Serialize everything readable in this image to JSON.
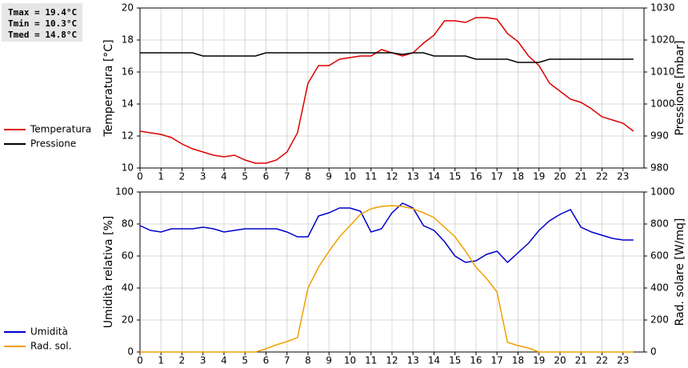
{
  "stats": [
    "Tmax = 19.4°C",
    "Tmin = 10.3°C",
    "Tmed = 14.8°C"
  ],
  "chart_data": [
    {
      "type": "line",
      "ylabel": "Temperatura [°C]",
      "y2label": "Pressione [mbar]",
      "x": [
        0,
        0.5,
        1,
        1.5,
        2,
        2.5,
        3,
        3.5,
        4,
        4.5,
        5,
        5.5,
        6,
        6.5,
        7,
        7.5,
        8,
        8.5,
        9,
        9.5,
        10,
        10.5,
        11,
        11.5,
        12,
        12.5,
        13,
        13.5,
        14,
        14.5,
        15,
        15.5,
        16,
        16.5,
        17,
        17.5,
        18,
        18.5,
        19,
        19.5,
        20,
        20.5,
        21,
        21.5,
        22,
        22.5,
        23,
        23.5
      ],
      "xlim": [
        0,
        24
      ],
      "xticks": [
        0,
        1,
        2,
        3,
        4,
        5,
        6,
        7,
        8,
        9,
        10,
        11,
        12,
        13,
        14,
        15,
        16,
        17,
        18,
        19,
        20,
        21,
        22,
        23
      ],
      "ylim": [
        10,
        20
      ],
      "yticks": [
        10,
        12,
        14,
        16,
        18,
        20
      ],
      "y2lim": [
        980,
        1030
      ],
      "y2ticks": [
        980,
        990,
        1000,
        1010,
        1020,
        1030
      ],
      "grid": true,
      "series": [
        {
          "name": "Temperatura",
          "color": "#dd0000",
          "values": [
            12.3,
            12.2,
            12.1,
            11.9,
            11.5,
            11.2,
            11.0,
            10.8,
            10.7,
            10.8,
            10.5,
            10.3,
            10.3,
            10.5,
            11.0,
            12.2,
            15.3,
            16.4,
            16.4,
            16.8,
            16.9,
            17.0,
            17.0,
            17.4,
            17.2,
            17.0,
            17.2,
            17.8,
            18.3,
            19.2,
            19.2,
            19.1,
            19.4,
            19.4,
            19.3,
            18.4,
            17.9,
            17.0,
            16.4,
            15.3,
            14.8,
            14.3,
            14.1,
            13.7,
            13.2,
            13.0,
            12.8,
            12.3
          ]
        },
        {
          "name": "Pressione",
          "color": "#000000",
          "axis": "y2",
          "values": [
            1016,
            1016,
            1016,
            1016,
            1016,
            1016,
            1015,
            1015,
            1015,
            1015,
            1015,
            1015,
            1016,
            1016,
            1016,
            1016,
            1016,
            1016,
            1016,
            1016,
            1016,
            1016,
            1016,
            1016,
            1016,
            1015.5,
            1016,
            1016,
            1015,
            1015,
            1015,
            1015,
            1014,
            1014,
            1014,
            1014,
            1013,
            1013,
            1013,
            1014,
            1014,
            1014,
            1014,
            1014,
            1014,
            1014,
            1014,
            1014
          ]
        }
      ]
    },
    {
      "type": "line",
      "ylabel": "Umidità relativa [%]",
      "y2label": "Rad. solare [W/mq]",
      "x": [
        0,
        0.5,
        1,
        1.5,
        2,
        2.5,
        3,
        3.5,
        4,
        4.5,
        5,
        5.5,
        6,
        6.5,
        7,
        7.5,
        8,
        8.5,
        9,
        9.5,
        10,
        10.5,
        11,
        11.5,
        12,
        12.5,
        13,
        13.5,
        14,
        14.5,
        15,
        15.5,
        16,
        16.5,
        17,
        17.5,
        18,
        18.5,
        19,
        19.5,
        20,
        20.5,
        21,
        21.5,
        22,
        22.5,
        23,
        23.5
      ],
      "xlim": [
        0,
        24
      ],
      "xticks": [
        0,
        1,
        2,
        3,
        4,
        5,
        6,
        7,
        8,
        9,
        10,
        11,
        12,
        13,
        14,
        15,
        16,
        17,
        18,
        19,
        20,
        21,
        22,
        23
      ],
      "ylim": [
        0,
        100
      ],
      "yticks": [
        0,
        20,
        40,
        60,
        80,
        100
      ],
      "y2lim": [
        0,
        1000
      ],
      "y2ticks": [
        0,
        200,
        400,
        600,
        800,
        1000
      ],
      "grid": true,
      "series": [
        {
          "name": "Umidità",
          "color": "#0000cc",
          "values": [
            79,
            76,
            75,
            77,
            77,
            77,
            78,
            77,
            75,
            76,
            77,
            77,
            77,
            77,
            75,
            72,
            72,
            85,
            87,
            90,
            90,
            88,
            75,
            77,
            87,
            93,
            90,
            79,
            76,
            69,
            60,
            56,
            57,
            61,
            63,
            56,
            62,
            68,
            76,
            82,
            86,
            89,
            78,
            75,
            73,
            71,
            70,
            70
          ]
        },
        {
          "name": "Rad. sol.",
          "color": "#f0a000",
          "axis": "y2",
          "values": [
            0,
            0,
            0,
            0,
            0,
            0,
            0,
            0,
            0,
            0,
            0,
            0,
            20,
            45,
            65,
            90,
            400,
            530,
            630,
            720,
            790,
            860,
            895,
            910,
            915,
            910,
            895,
            870,
            840,
            780,
            720,
            630,
            530,
            460,
            375,
            60,
            40,
            25,
            0,
            0,
            0,
            0,
            0,
            0,
            0,
            0,
            0,
            0
          ]
        }
      ]
    }
  ]
}
